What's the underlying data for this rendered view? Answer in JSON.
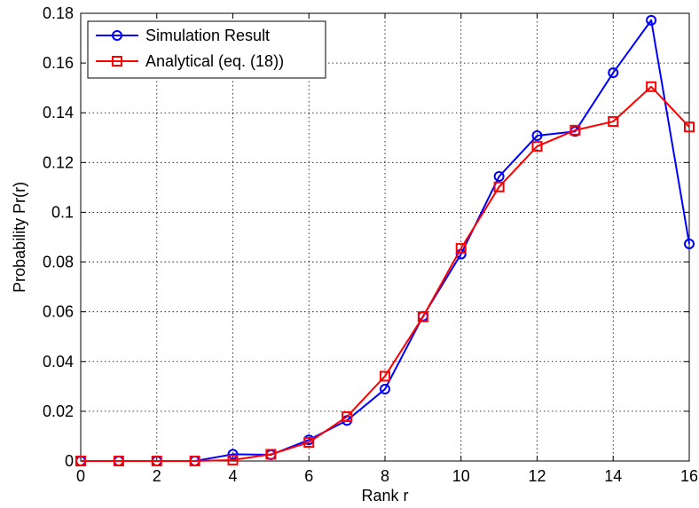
{
  "chart_data": {
    "type": "line",
    "xlabel": "Rank r",
    "ylabel": "Probability Pr(r)",
    "xlim": [
      0,
      16
    ],
    "ylim": [
      0,
      0.18
    ],
    "grid": true,
    "legend_position": "top-left",
    "x_ticks": [
      "0",
      "2",
      "4",
      "6",
      "8",
      "10",
      "12",
      "14",
      "16"
    ],
    "y_ticks": [
      "0",
      "0.02",
      "0.04",
      "0.06",
      "0.08",
      "0.1",
      "0.12",
      "0.14",
      "0.16",
      "0.18"
    ],
    "x": [
      0,
      1,
      2,
      3,
      4,
      5,
      6,
      7,
      8,
      9,
      10,
      11,
      12,
      13,
      14,
      15,
      16
    ],
    "series": [
      {
        "name": "Simulation Result",
        "color": "#0000ff",
        "marker": "circle",
        "values": [
          0,
          0,
          0,
          0,
          0.0027,
          0.0025,
          0.0085,
          0.0163,
          0.0289,
          0.0582,
          0.0832,
          0.1144,
          0.1308,
          0.1325,
          0.1561,
          0.1772,
          0.0873
        ]
      },
      {
        "name": "Analytical (eq. (18))",
        "color": "#ff0000",
        "marker": "square",
        "values": [
          0,
          0,
          0,
          0,
          0.0004,
          0.0027,
          0.0075,
          0.0178,
          0.0341,
          0.058,
          0.0855,
          0.1102,
          0.1265,
          0.133,
          0.1365,
          0.1505,
          0.1343
        ]
      }
    ]
  }
}
